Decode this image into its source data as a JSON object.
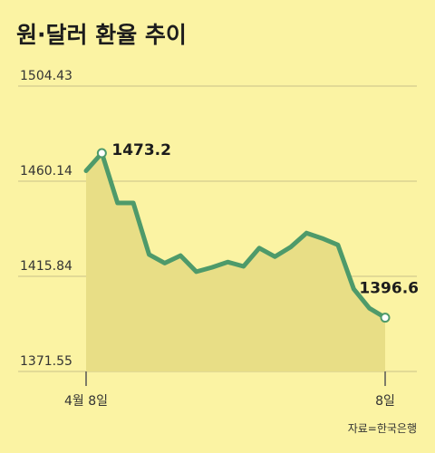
{
  "title": "원·달러 환율 추이",
  "source": "자료=한국은행",
  "colors": {
    "background": "#fbf3a3",
    "line": "#4e9a6a",
    "area": "#e8de86",
    "grid": "#c9c08a",
    "marker_fill": "#ffffff"
  },
  "chart_data": {
    "type": "area",
    "title": "원·달러 환율 추이",
    "xlabel": "",
    "ylabel": "",
    "ylim": [
      1371.55,
      1504.43
    ],
    "yticks": [
      "1504.43",
      "1460.14",
      "1415.84",
      "1371.55"
    ],
    "xticks": [
      "4월 8일",
      "8일"
    ],
    "grid": true,
    "series": [
      {
        "values": [
          1465.0,
          1473.2,
          1450.0,
          1450.0,
          1426.0,
          1422.0,
          1425.5,
          1418.0,
          1420.0,
          1422.5,
          1420.5,
          1429.0,
          1425.0,
          1429.5,
          1436.0,
          1433.5,
          1430.5,
          1410.0,
          1401.0,
          1396.6
        ]
      }
    ],
    "annotations": [
      {
        "index": 1,
        "label": "1473.2"
      },
      {
        "index": 19,
        "label": "1396.6"
      }
    ]
  }
}
